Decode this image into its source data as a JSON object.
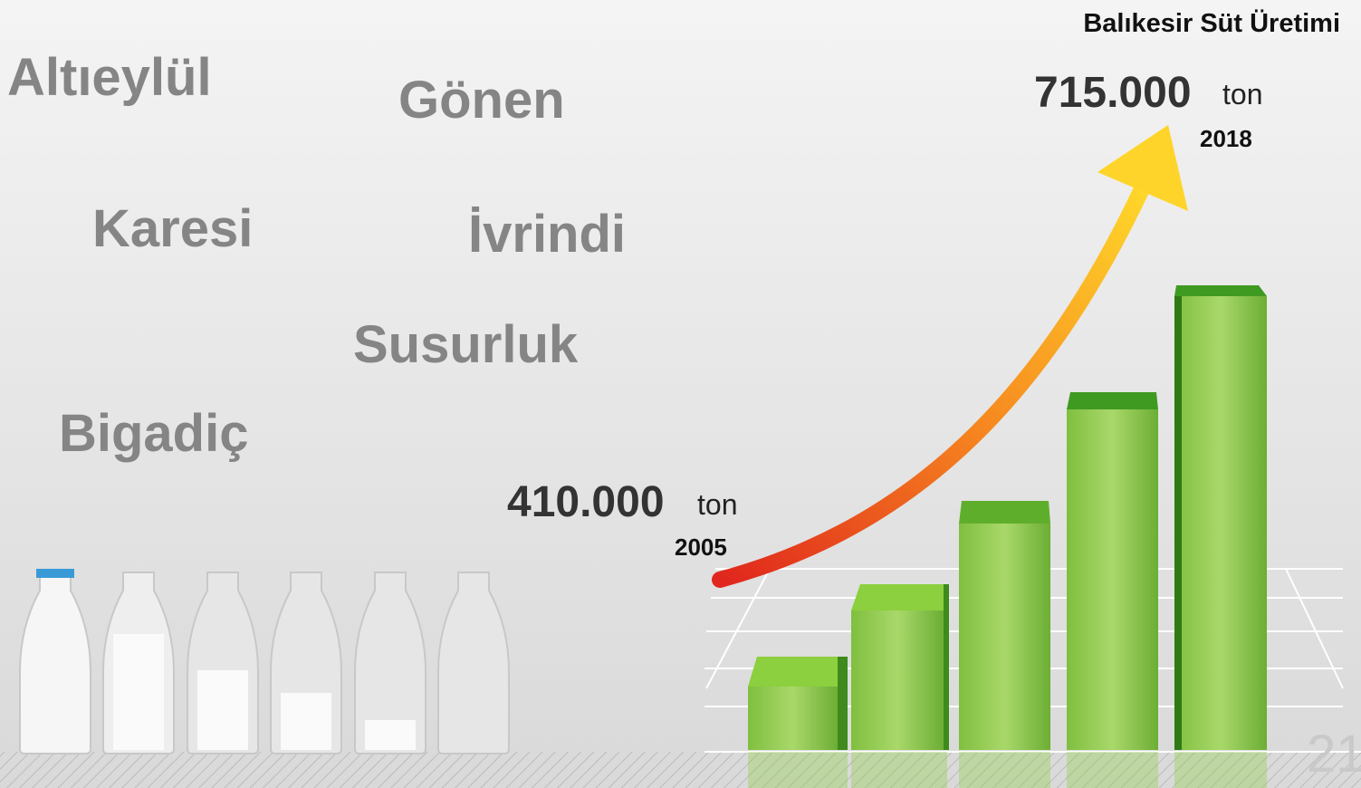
{
  "districts": [
    "Altıeylül",
    "Gönen",
    "Karesi",
    "İvrindi",
    "Susurluk",
    "Bigadiç"
  ],
  "title": "Balıkesir Süt Üretimi",
  "end": {
    "amount": "715.000",
    "unit": "ton",
    "year": "2018"
  },
  "start": {
    "amount": "410.000",
    "unit": "ton",
    "year": "2005"
  },
  "page_number": "21"
}
